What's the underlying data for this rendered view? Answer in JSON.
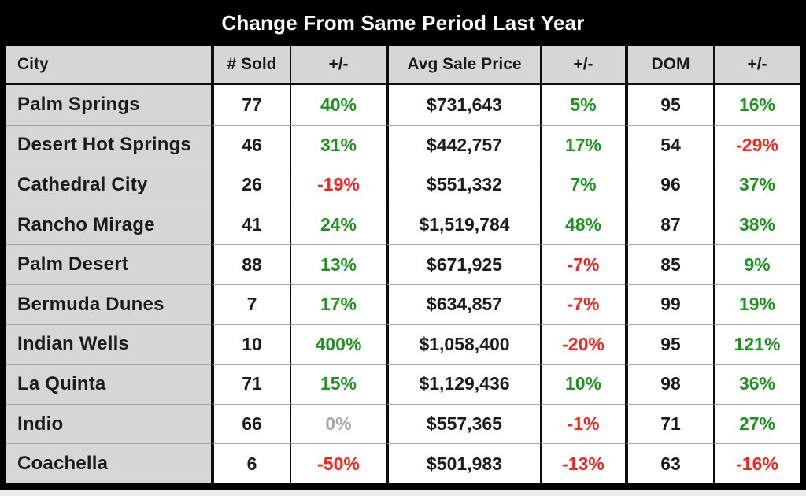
{
  "title": "Change From Same Period Last Year",
  "columns": [
    {
      "key": "city",
      "label": "City"
    },
    {
      "key": "sold",
      "label": "# Sold"
    },
    {
      "key": "sold_change",
      "label": "+/-"
    },
    {
      "key": "price",
      "label": "Avg Sale Price"
    },
    {
      "key": "price_change",
      "label": "+/-"
    },
    {
      "key": "dom",
      "label": "DOM"
    },
    {
      "key": "dom_change",
      "label": "+/-"
    }
  ],
  "colors": {
    "positive": "#1e941e",
    "negative": "#f7231c",
    "neutral": "#a8a8a8",
    "header_bg": "#d6d6d6",
    "frame": "#000000"
  },
  "rows": [
    {
      "city": "Palm Springs",
      "sold": "77",
      "sold_change": "40%",
      "sold_trend": "up",
      "price": "$731,643",
      "price_change": "5%",
      "price_trend": "up",
      "dom": "95",
      "dom_change": "16%",
      "dom_trend": "up"
    },
    {
      "city": "Desert Hot Springs",
      "sold": "46",
      "sold_change": "31%",
      "sold_trend": "up",
      "price": "$442,757",
      "price_change": "17%",
      "price_trend": "up",
      "dom": "54",
      "dom_change": "-29%",
      "dom_trend": "down"
    },
    {
      "city": "Cathedral City",
      "sold": "26",
      "sold_change": "-19%",
      "sold_trend": "down",
      "price": "$551,332",
      "price_change": "7%",
      "price_trend": "up",
      "dom": "96",
      "dom_change": "37%",
      "dom_trend": "up"
    },
    {
      "city": "Rancho Mirage",
      "sold": "41",
      "sold_change": "24%",
      "sold_trend": "up",
      "price": "$1,519,784",
      "price_change": "48%",
      "price_trend": "up",
      "dom": "87",
      "dom_change": "38%",
      "dom_trend": "up"
    },
    {
      "city": "Palm Desert",
      "sold": "88",
      "sold_change": "13%",
      "sold_trend": "up",
      "price": "$671,925",
      "price_change": "-7%",
      "price_trend": "down",
      "dom": "85",
      "dom_change": "9%",
      "dom_trend": "up"
    },
    {
      "city": "Bermuda Dunes",
      "sold": "7",
      "sold_change": "17%",
      "sold_trend": "up",
      "price": "$634,857",
      "price_change": "-7%",
      "price_trend": "down",
      "dom": "99",
      "dom_change": "19%",
      "dom_trend": "up"
    },
    {
      "city": "Indian Wells",
      "sold": "10",
      "sold_change": "400%",
      "sold_trend": "up",
      "price": "$1,058,400",
      "price_change": "-20%",
      "price_trend": "down",
      "dom": "95",
      "dom_change": "121%",
      "dom_trend": "up"
    },
    {
      "city": "La Quinta",
      "sold": "71",
      "sold_change": "15%",
      "sold_trend": "up",
      "price": "$1,129,436",
      "price_change": "10%",
      "price_trend": "up",
      "dom": "98",
      "dom_change": "36%",
      "dom_trend": "up"
    },
    {
      "city": "Indio",
      "sold": "66",
      "sold_change": "0%",
      "sold_trend": "flat",
      "price": "$557,365",
      "price_change": "-1%",
      "price_trend": "down",
      "dom": "71",
      "dom_change": "27%",
      "dom_trend": "up"
    },
    {
      "city": "Coachella",
      "sold": "6",
      "sold_change": "-50%",
      "sold_trend": "down",
      "price": "$501,983",
      "price_change": "-13%",
      "price_trend": "down",
      "dom": "63",
      "dom_change": "-16%",
      "dom_trend": "down"
    }
  ]
}
